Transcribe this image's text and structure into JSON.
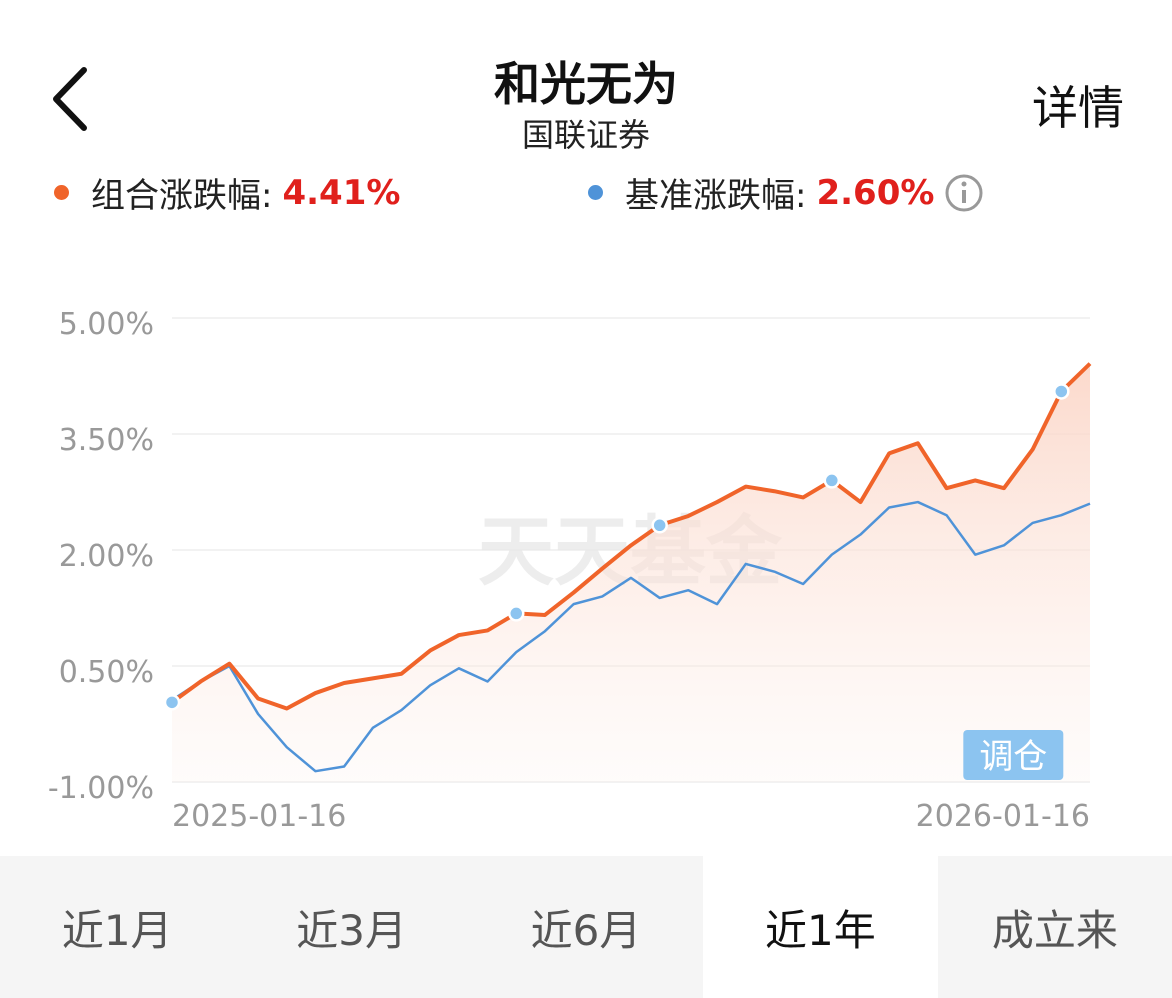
{
  "header": {
    "title": "和光无为",
    "subtitle": "国联证券",
    "action": "详情"
  },
  "chart_data": {
    "type": "line",
    "categories": [
      "2025-01-16",
      null,
      null,
      null,
      null,
      null,
      null,
      null,
      null,
      null,
      null,
      null,
      null,
      null,
      null,
      null,
      null,
      null,
      null,
      null,
      null,
      null,
      null,
      null,
      null,
      null,
      null,
      null,
      null,
      null,
      null,
      null,
      "2026-01-16"
    ],
    "series": [
      {
        "name": "组合涨跌幅:",
        "color": "#f0642a",
        "change_label": "4.41%",
        "values": [
          0.03,
          0.3,
          0.53,
          0.08,
          -0.05,
          0.15,
          0.28,
          0.34,
          0.4,
          0.7,
          0.9,
          0.96,
          1.18,
          1.16,
          1.45,
          1.76,
          2.06,
          2.32,
          2.44,
          2.62,
          2.82,
          2.76,
          2.68,
          2.9,
          2.62,
          3.25,
          3.38,
          2.8,
          2.9,
          2.8,
          3.3,
          4.05,
          4.41
        ]
      },
      {
        "name": "基准涨跌幅:",
        "color": "#4f93d8",
        "change_label": "2.60%",
        "values": [
          0.06,
          0.3,
          0.5,
          -0.12,
          -0.55,
          -0.86,
          -0.8,
          -0.3,
          -0.07,
          0.25,
          0.47,
          0.3,
          0.68,
          0.95,
          1.3,
          1.4,
          1.64,
          1.38,
          1.48,
          1.3,
          1.82,
          1.72,
          1.56,
          1.94,
          2.2,
          2.55,
          2.62,
          2.45,
          1.94,
          2.06,
          2.35,
          2.45,
          2.6
        ]
      }
    ],
    "ylim": [
      -1,
      5
    ],
    "yticks": [
      {
        "value": 5,
        "label": "5.00%"
      },
      {
        "value": 3.5,
        "label": "3.50%"
      },
      {
        "value": 2,
        "label": "2.00%"
      },
      {
        "value": 0.5,
        "label": "0.50%"
      },
      {
        "value": -1,
        "label": "-1.00%"
      }
    ],
    "grid": true,
    "watermark": "天天基金",
    "rebalance_label": "调仓"
  },
  "tabs": {
    "items": [
      "近1月",
      "近3月",
      "近6月",
      "近1年",
      "成立来"
    ],
    "selected": 3
  }
}
